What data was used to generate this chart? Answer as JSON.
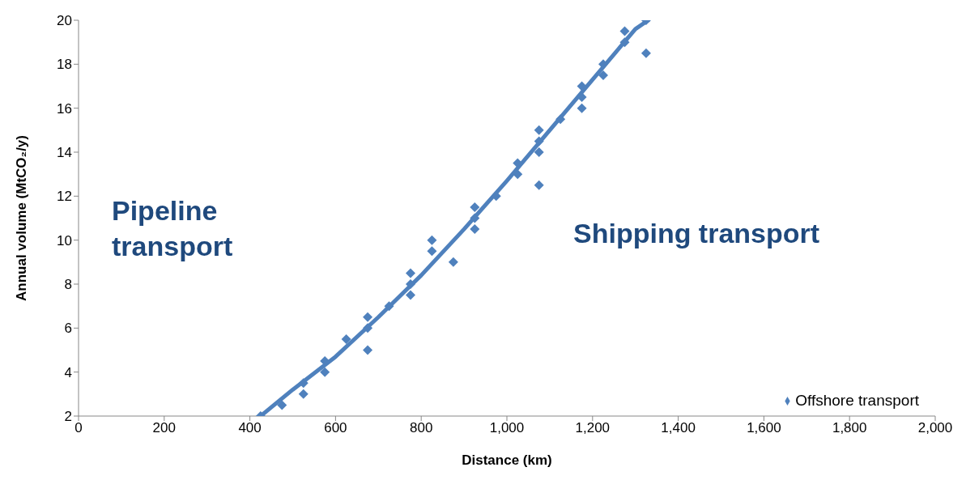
{
  "chart_data": {
    "type": "scatter",
    "xlabel": "Distance (km)",
    "ylabel": "Annual volume (MtCO₂/y)",
    "xlim": [
      0,
      2000
    ],
    "xticks": [
      0,
      200,
      400,
      600,
      800,
      {
        "value": 1000,
        "label": "1,000"
      },
      {
        "value": 1200,
        "label": "1,200"
      },
      {
        "value": 1400,
        "label": "1,400"
      },
      {
        "value": 1600,
        "label": "1,600"
      },
      {
        "value": 1800,
        "label": "1,800"
      },
      {
        "value": 2000,
        "label": "2,000"
      }
    ],
    "ylim": [
      2,
      20
    ],
    "yticks": [
      2,
      4,
      6,
      8,
      10,
      12,
      14,
      16,
      18,
      20
    ],
    "grid": false,
    "legend": "bottom right",
    "marker": "diamond",
    "annotations": [
      "Pipeline\ntransport",
      "Shipping transport"
    ],
    "series": [
      {
        "name": "Offshore transport",
        "color": "#4f81bd",
        "x": [
          425,
          475,
          525,
          525,
          575,
          575,
          625,
          675,
          675,
          675,
          725,
          775,
          775,
          775,
          825,
          825,
          875,
          925,
          925,
          925,
          975,
          1025,
          1025,
          1075,
          1075,
          1075,
          1075,
          1125,
          1175,
          1175,
          1175,
          1225,
          1225,
          1275,
          1275,
          1325,
          1325
        ],
        "values": [
          2,
          2.5,
          3.5,
          3,
          4.5,
          4,
          5.5,
          6.5,
          6,
          5,
          7,
          8.5,
          8,
          7.5,
          10,
          9.5,
          9,
          11.5,
          11,
          10.5,
          12,
          13.5,
          13,
          15,
          14.5,
          14,
          12.5,
          15.5,
          17,
          16.5,
          16,
          18,
          17.5,
          19.5,
          19,
          20,
          18.5
        ]
      },
      {
        "type": "line",
        "color": "#4f81bd",
        "marker": "none",
        "x": [
          425,
          500,
          600,
          700,
          800,
          900,
          1000,
          1100,
          1200,
          1300,
          1330
        ],
        "values": [
          2,
          3.2,
          4.7,
          6.5,
          8.4,
          10.5,
          12.7,
          15,
          17.3,
          19.6,
          20
        ]
      }
    ]
  }
}
